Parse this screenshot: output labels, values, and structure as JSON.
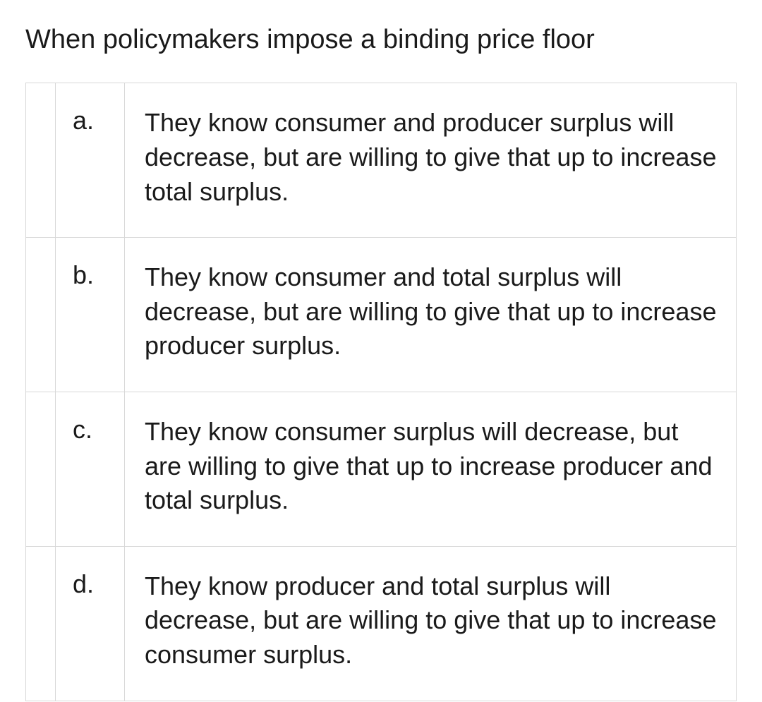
{
  "question": {
    "text": "When policymakers impose a binding price floor",
    "text_color": "#1a1a1a",
    "font_size": 38
  },
  "options": [
    {
      "label": "a.",
      "answer": "They know consumer and producer surplus will decrease, but are willing to give that up to increase total surplus."
    },
    {
      "label": "b.",
      "answer": "They know consumer and total surplus will decrease, but are willing to give that up to increase producer surplus."
    },
    {
      "label": "c.",
      "answer": "They know consumer surplus will decrease, but are willing to give that up to increase producer and total surplus."
    },
    {
      "label": "d.",
      "answer": "They know producer and total surplus will decrease, but are willing to give that up to increase consumer surplus."
    }
  ],
  "styling": {
    "background_color": "#ffffff",
    "border_color": "#d8d8d8",
    "text_color": "#1a1a1a",
    "option_font_size": 36,
    "row_padding_vertical": 32
  }
}
